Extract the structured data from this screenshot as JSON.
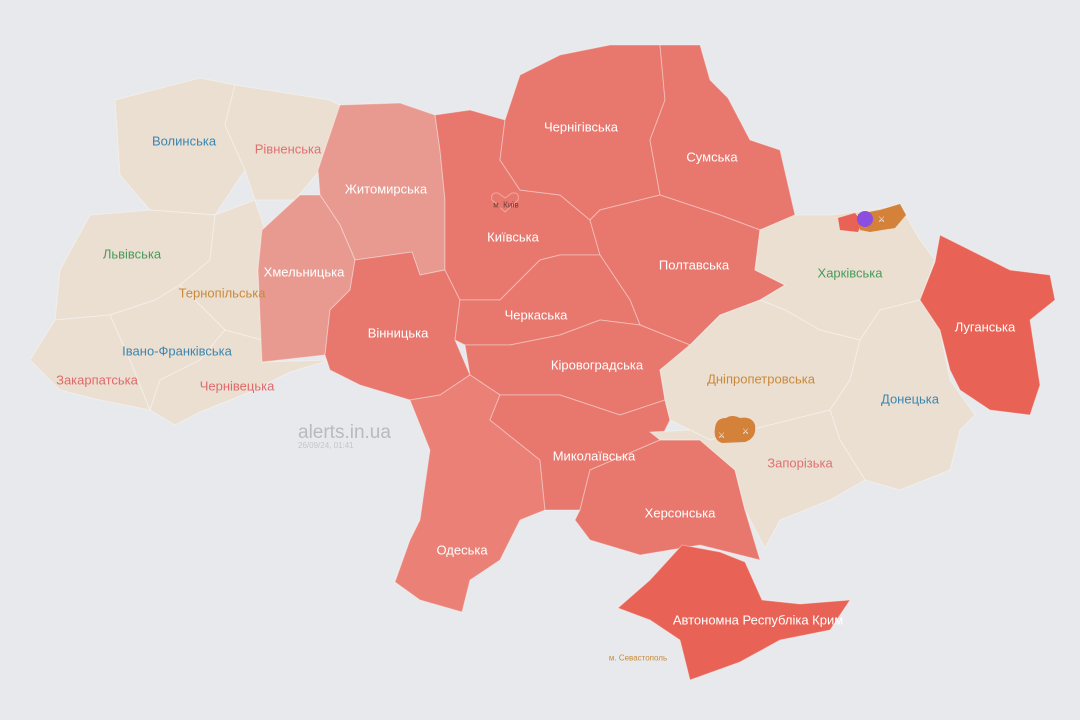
{
  "watermark": {
    "site": "alerts.in.ua",
    "timestamp": "26/09/24, 01:41"
  },
  "colors": {
    "background": "#e8e9ec",
    "no_alert": "#ebdfd2",
    "alert": "#e8786e",
    "alert_light": "#e99a90",
    "alert_strong": "#e96256",
    "occupied_marker": "#d4813a",
    "drone_marker": "#8a4ee0"
  },
  "regions": [
    {
      "id": "volyn",
      "name": "Волинська",
      "status": "none",
      "label_color": "#3a86b0"
    },
    {
      "id": "rivne",
      "name": "Рівненська",
      "status": "none",
      "label_color": "#e07070"
    },
    {
      "id": "lviv",
      "name": "Львівська",
      "status": "none",
      "label_color": "#4a9a5a"
    },
    {
      "id": "ternopil",
      "name": "Тернопільська",
      "status": "none",
      "label_color": "#c88a3a"
    },
    {
      "id": "zakarpattia",
      "name": "Закарпатська",
      "status": "none",
      "label_color": "#e06a6a"
    },
    {
      "id": "ivano",
      "name": "Івано-Франківська",
      "status": "none",
      "label_color": "#3a86b0"
    },
    {
      "id": "chernivtsi",
      "name": "Чернівецька",
      "status": "none",
      "label_color": "#e06a6a"
    },
    {
      "id": "zhytomyr",
      "name": "Житомирська",
      "status": "alert",
      "label_color": "#ffffff"
    },
    {
      "id": "khmelnytskyi",
      "name": "Хмельницька",
      "status": "alert",
      "label_color": "#ffffff"
    },
    {
      "id": "vinnytsia",
      "name": "Вінницька",
      "status": "alert",
      "label_color": "#ffffff"
    },
    {
      "id": "kyiv_obl",
      "name": "Київська",
      "status": "alert",
      "label_color": "#ffffff"
    },
    {
      "id": "kyiv_city",
      "name": "м. Київ",
      "status": "alert",
      "label_color": "#6b3a36"
    },
    {
      "id": "chernihiv",
      "name": "Чернігівська",
      "status": "alert",
      "label_color": "#ffffff"
    },
    {
      "id": "sumy",
      "name": "Сумська",
      "status": "alert",
      "label_color": "#ffffff"
    },
    {
      "id": "poltava",
      "name": "Полтавська",
      "status": "alert",
      "label_color": "#ffffff"
    },
    {
      "id": "cherkasy",
      "name": "Черкаська",
      "status": "alert",
      "label_color": "#ffffff"
    },
    {
      "id": "kirovohrad",
      "name": "Кіровоградська",
      "status": "alert",
      "label_color": "#ffffff"
    },
    {
      "id": "odesa",
      "name": "Одеська",
      "status": "alert",
      "label_color": "#ffffff"
    },
    {
      "id": "mykolaiv",
      "name": "Миколаївська",
      "status": "alert",
      "label_color": "#ffffff"
    },
    {
      "id": "kherson",
      "name": "Херсонська",
      "status": "alert",
      "label_color": "#ffffff"
    },
    {
      "id": "crimea",
      "name": "Автономна Республіка Крим",
      "status": "alert",
      "label_color": "#ffffff"
    },
    {
      "id": "sevastopol",
      "name": "м. Севастополь",
      "status": "none",
      "label_color": "#c88a3a"
    },
    {
      "id": "kharkiv",
      "name": "Харківська",
      "status": "none",
      "label_color": "#4a9a5a"
    },
    {
      "id": "dnipro",
      "name": "Дніпропетровська",
      "status": "none",
      "label_color": "#c88a3a"
    },
    {
      "id": "donetsk",
      "name": "Донецька",
      "status": "none",
      "label_color": "#3a86b0"
    },
    {
      "id": "zaporizhzhia",
      "name": "Запорізька",
      "status": "none",
      "label_color": "#e07070"
    },
    {
      "id": "luhansk",
      "name": "Луганська",
      "status": "alert",
      "label_color": "#ffffff"
    }
  ]
}
